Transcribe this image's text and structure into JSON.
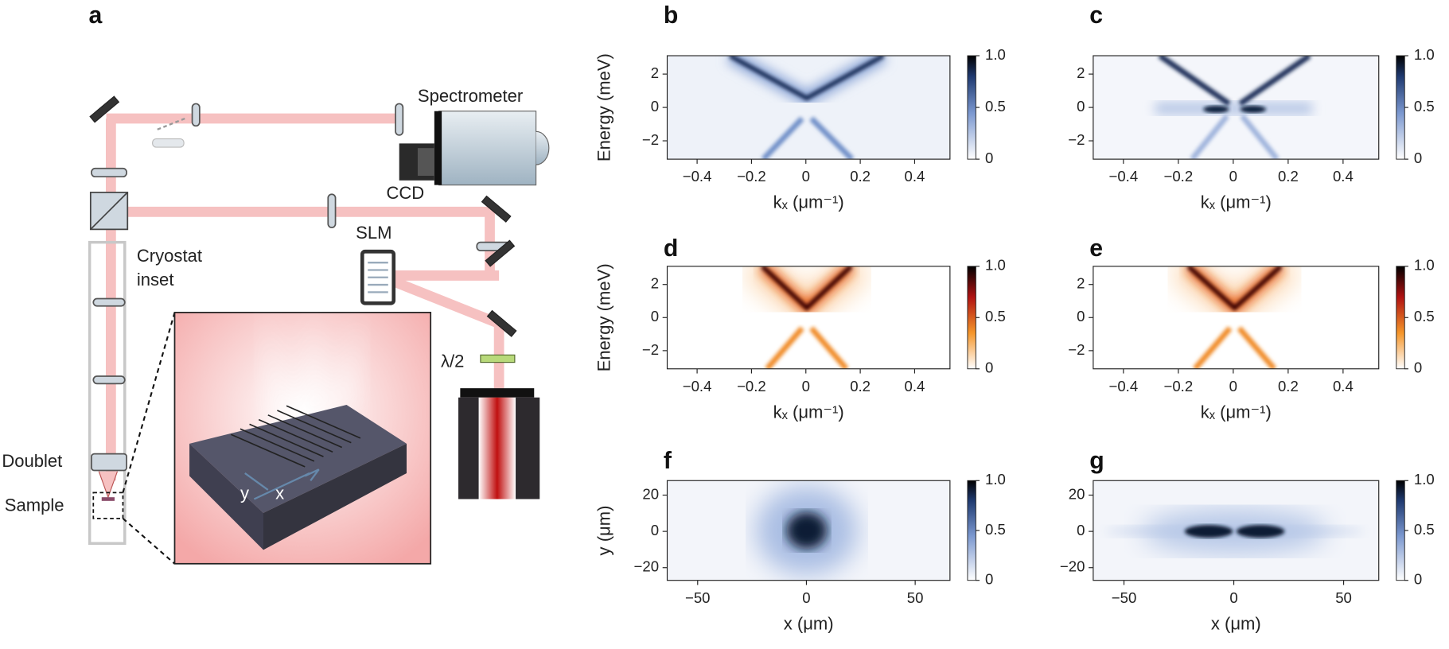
{
  "diagram": {
    "label": "a",
    "spectrometer": "Spectrometer",
    "ccd": "CCD",
    "slm": "SLM",
    "cryostat": [
      "Cryostat",
      "inset"
    ],
    "doublet": "Doublet",
    "sample": "Sample",
    "waveplate": "λ/2",
    "axis_y": "y",
    "axis_x": "x"
  },
  "chart_data": [
    {
      "type": "heatmap",
      "label": "b",
      "colormap": "blue",
      "xlabel": "kₓ (μm⁻¹)",
      "ylabel": "Energy (meV)",
      "xlim": [
        -0.51,
        0.53
      ],
      "xticks": [
        {
          "value": -0.4,
          "label": "−0.4"
        },
        {
          "value": -0.2,
          "label": "−0.2"
        },
        0,
        0.2,
        0.4
      ],
      "ylim": [
        -3.1,
        3.1
      ],
      "yticks": [
        {
          "value": -2,
          "label": "−2"
        },
        0,
        2
      ],
      "clim": [
        0,
        1
      ],
      "cticks": [
        0,
        0.5,
        {
          "value": 1,
          "label": "1.0"
        }
      ]
    },
    {
      "type": "heatmap",
      "label": "c",
      "colormap": "blue",
      "xlabel": "kₓ (μm⁻¹)",
      "xlim": [
        -0.51,
        0.53
      ],
      "xticks": [
        {
          "value": -0.4,
          "label": "−0.4"
        },
        {
          "value": -0.2,
          "label": "−0.2"
        },
        0,
        0.2,
        0.4
      ],
      "ylim": [
        -3.1,
        3.1
      ],
      "yticks": [
        {
          "value": -2,
          "label": "−2"
        },
        0,
        2
      ],
      "clim": [
        0,
        1
      ],
      "cticks": [
        0,
        0.5,
        {
          "value": 1,
          "label": "1.0"
        }
      ]
    },
    {
      "type": "heatmap",
      "label": "d",
      "colormap": "orange",
      "xlabel": "kₓ (μm⁻¹)",
      "ylabel": "Energy (meV)",
      "xlim": [
        -0.51,
        0.53
      ],
      "xticks": [
        {
          "value": -0.4,
          "label": "−0.4"
        },
        {
          "value": -0.2,
          "label": "−0.2"
        },
        0,
        0.2,
        0.4
      ],
      "ylim": [
        -3.1,
        3.1
      ],
      "yticks": [
        {
          "value": -2,
          "label": "−2"
        },
        0,
        2
      ],
      "clim": [
        0,
        1
      ],
      "cticks": [
        0,
        0.5,
        {
          "value": 1,
          "label": "1.0"
        }
      ]
    },
    {
      "type": "heatmap",
      "label": "e",
      "colormap": "orange",
      "xlabel": "kₓ (μm⁻¹)",
      "xlim": [
        -0.51,
        0.53
      ],
      "xticks": [
        {
          "value": -0.4,
          "label": "−0.4"
        },
        {
          "value": -0.2,
          "label": "−0.2"
        },
        0,
        0.2,
        0.4
      ],
      "ylim": [
        -3.1,
        3.1
      ],
      "yticks": [
        {
          "value": -2,
          "label": "−2"
        },
        0,
        2
      ],
      "clim": [
        0,
        1
      ],
      "cticks": [
        0,
        0.5,
        {
          "value": 1,
          "label": "1.0"
        }
      ]
    },
    {
      "type": "heatmap",
      "label": "f",
      "colormap": "blue",
      "xlabel": "x (μm)",
      "ylabel": "y (μm)",
      "xlim": [
        -64,
        66
      ],
      "xticks": [
        {
          "value": -50,
          "label": "−50"
        },
        0,
        50
      ],
      "ylim": [
        -27,
        28
      ],
      "yticks": [
        {
          "value": -20,
          "label": "−20"
        },
        0,
        20
      ],
      "clim": [
        0,
        1
      ],
      "cticks": [
        0,
        0.5,
        {
          "value": 1,
          "label": "1.0"
        }
      ]
    },
    {
      "type": "heatmap",
      "label": "g",
      "colormap": "blue",
      "xlabel": "x (μm)",
      "xlim": [
        -64,
        66
      ],
      "xticks": [
        {
          "value": -50,
          "label": "−50"
        },
        0,
        50
      ],
      "ylim": [
        -27,
        28
      ],
      "yticks": [
        {
          "value": -20,
          "label": "−20"
        },
        0,
        20
      ],
      "clim": [
        0,
        1
      ],
      "cticks": [
        0,
        0.5,
        {
          "value": 1,
          "label": "1.0"
        }
      ]
    }
  ]
}
